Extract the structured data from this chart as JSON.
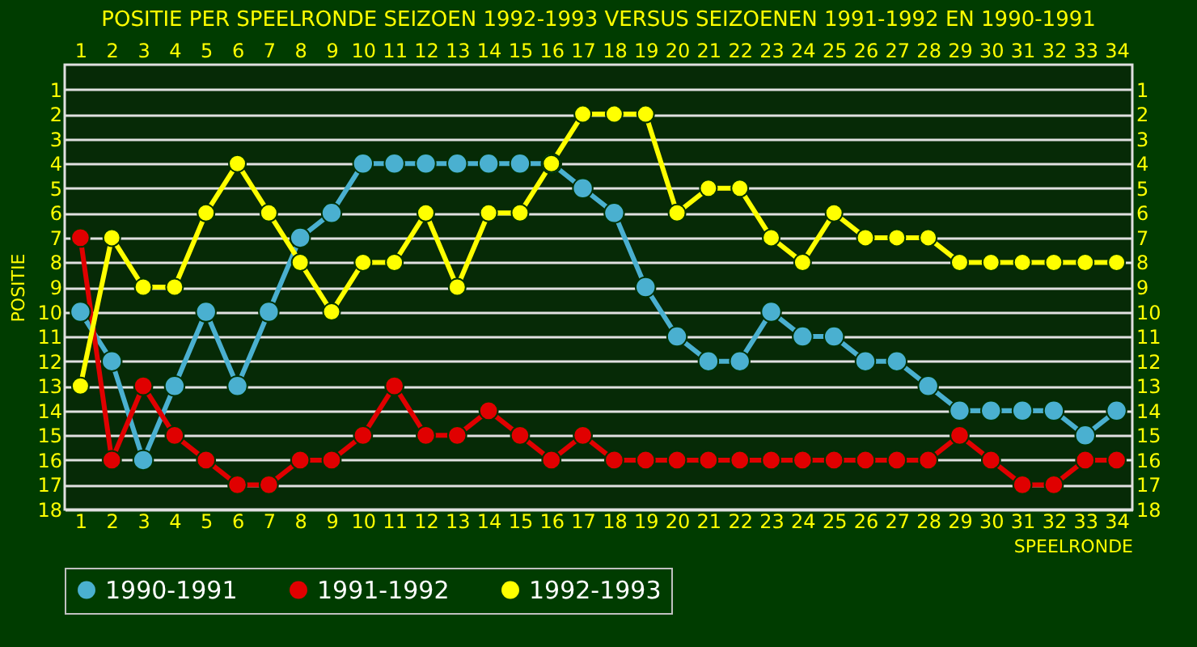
{
  "chart_data": {
    "type": "line",
    "title": "POSITIE PER SPEELRONDE SEIZOEN 1992-1993 VERSUS SEIZOENEN 1991-1992 EN 1990-1991",
    "xlabel": "SPEELRONDE",
    "ylabel": "POSITIE",
    "x": [
      1,
      2,
      3,
      4,
      5,
      6,
      7,
      8,
      9,
      10,
      11,
      12,
      13,
      14,
      15,
      16,
      17,
      18,
      19,
      20,
      21,
      22,
      23,
      24,
      25,
      26,
      27,
      28,
      29,
      30,
      31,
      32,
      33,
      34
    ],
    "series": [
      {
        "name": "1990-1991",
        "color": "#4ab0d0",
        "values": [
          10,
          12,
          16,
          13,
          10,
          13,
          10,
          7,
          6,
          4,
          4,
          4,
          4,
          4,
          4,
          4,
          5,
          6,
          9,
          11,
          12,
          12,
          10,
          11,
          11,
          12,
          12,
          13,
          14,
          14,
          14,
          14,
          15,
          14
        ]
      },
      {
        "name": "1991-1992",
        "color": "#e00000",
        "values": [
          7,
          16,
          13,
          15,
          16,
          17,
          17,
          16,
          16,
          15,
          13,
          15,
          15,
          14,
          15,
          16,
          15,
          16,
          16,
          16,
          16,
          16,
          16,
          16,
          16,
          16,
          16,
          16,
          15,
          16,
          17,
          17,
          16,
          16
        ]
      },
      {
        "name": "1992-1993",
        "color": "#ffff00",
        "values": [
          13,
          7,
          9,
          9,
          6,
          4,
          6,
          8,
          10,
          8,
          8,
          6,
          9,
          6,
          6,
          4,
          2,
          2,
          2,
          6,
          5,
          5,
          7,
          8,
          6,
          7,
          7,
          7,
          8,
          8,
          8,
          8,
          8,
          8
        ]
      }
    ],
    "xlim": [
      0.5,
      34.5
    ],
    "xticks": [
      1,
      2,
      3,
      4,
      5,
      6,
      7,
      8,
      9,
      10,
      11,
      12,
      13,
      14,
      15,
      16,
      17,
      18,
      19,
      20,
      21,
      22,
      23,
      24,
      25,
      26,
      27,
      28,
      29,
      30,
      31,
      32,
      33,
      34
    ],
    "x2lim": [
      0.5,
      34.5
    ],
    "x2ticks": [
      1,
      2,
      3,
      4,
      5,
      6,
      7,
      8,
      9,
      10,
      11,
      12,
      13,
      14,
      15,
      16,
      17,
      18,
      19,
      20,
      21,
      22,
      23,
      24,
      25,
      26,
      27,
      28,
      29,
      30,
      31,
      32,
      33,
      34
    ],
    "ylim": [
      18,
      0
    ],
    "yticks": [
      1,
      2,
      3,
      4,
      5,
      6,
      7,
      8,
      9,
      10,
      11,
      12,
      13,
      14,
      15,
      16,
      17,
      18
    ],
    "y2lim": [
      18,
      0
    ],
    "y2ticks": [
      1,
      2,
      3,
      4,
      5,
      6,
      7,
      8,
      9,
      10,
      11,
      12,
      13,
      14,
      15,
      16,
      17,
      18
    ],
    "grid": "y",
    "legend": "bottom",
    "marker": "circle",
    "line_style": "solid"
  }
}
